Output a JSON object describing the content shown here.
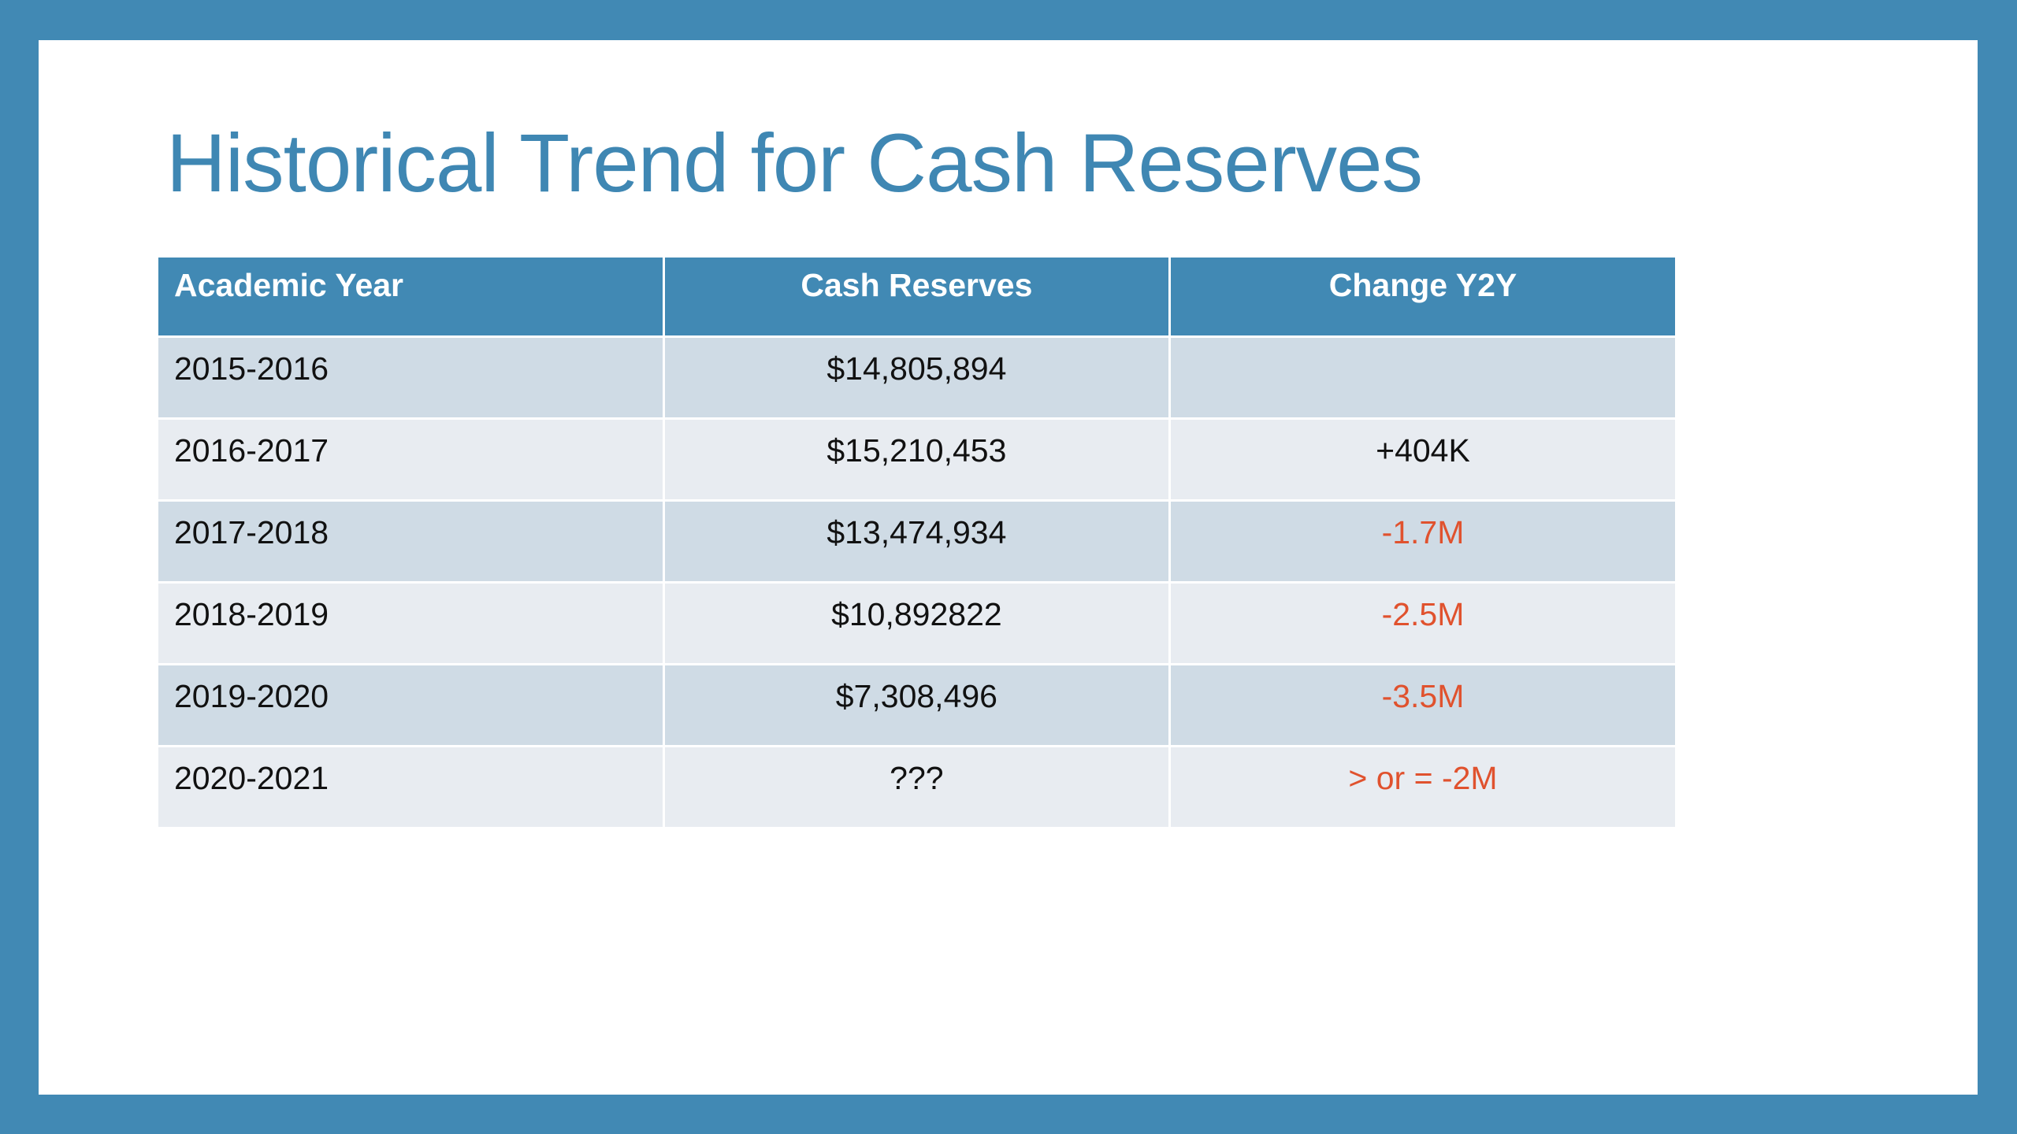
{
  "slide": {
    "title": "Historical Trend for Cash Reserves",
    "colors": {
      "frame": "#4189b4",
      "title": "#3f87b3",
      "header_bg": "#4189b4",
      "row_dark": "#cfdbe5",
      "row_light": "#e8ecf1",
      "negative_text": "#e0522e"
    }
  },
  "table": {
    "headers": [
      "Academic Year",
      "Cash Reserves",
      "Change Y2Y"
    ],
    "rows": [
      {
        "year": "2015-2016",
        "reserves": "$14,805,894",
        "change": "",
        "negative": false
      },
      {
        "year": "2016-2017",
        "reserves": "$15,210,453",
        "change": "+404K",
        "negative": false
      },
      {
        "year": "2017-2018",
        "reserves": "$13,474,934",
        "change": "-1.7M",
        "negative": true
      },
      {
        "year": "2018-2019",
        "reserves": "$10,892822",
        "change": "-2.5M",
        "negative": true
      },
      {
        "year": "2019-2020",
        "reserves": "$7,308,496",
        "change": "-3.5M",
        "negative": true
      },
      {
        "year": "2020-2021",
        "reserves": "???",
        "change": "> or = -2M",
        "negative": true
      }
    ]
  }
}
